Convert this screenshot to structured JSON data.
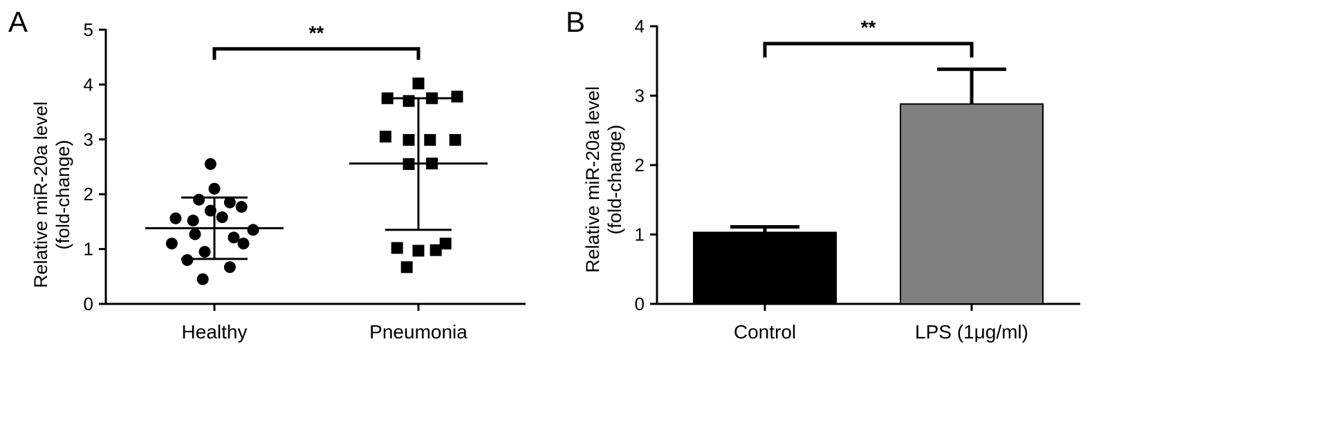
{
  "panels": {
    "A": {
      "label": "A"
    },
    "B": {
      "label": "B"
    }
  },
  "chart_data": [
    {
      "panel": "A",
      "type": "scatter",
      "ylabel_line1": "Relative miR-20a level",
      "ylabel_line2": "(fold-change)",
      "ylim": [
        0,
        5
      ],
      "yticks": [
        0,
        1,
        2,
        3,
        4,
        5
      ],
      "ytick_labels": [
        "0",
        "1",
        "2",
        "3",
        "4",
        "5"
      ],
      "grid": false,
      "legend": "none",
      "categories": [
        "Healthy",
        "Pneumonia"
      ],
      "groups": [
        {
          "category": "Healthy",
          "marker": "circle",
          "mean": 1.38,
          "sd_upper": 1.94,
          "sd_lower": 0.82,
          "points": [
            {
              "x_offset": -0.02,
              "y": 2.55
            },
            {
              "x_offset": 0.0,
              "y": 2.1
            },
            {
              "x_offset": -0.08,
              "y": 1.9
            },
            {
              "x_offset": 0.08,
              "y": 1.85
            },
            {
              "x_offset": 0.14,
              "y": 1.77
            },
            {
              "x_offset": -0.02,
              "y": 1.7
            },
            {
              "x_offset": -0.2,
              "y": 1.56
            },
            {
              "x_offset": -0.11,
              "y": 1.52
            },
            {
              "x_offset": 0.04,
              "y": 1.58
            },
            {
              "x_offset": 0.2,
              "y": 1.35
            },
            {
              "x_offset": -0.1,
              "y": 1.27
            },
            {
              "x_offset": 0.1,
              "y": 1.21
            },
            {
              "x_offset": -0.22,
              "y": 1.1
            },
            {
              "x_offset": 0.15,
              "y": 1.1
            },
            {
              "x_offset": -0.05,
              "y": 0.95
            },
            {
              "x_offset": -0.14,
              "y": 0.8
            },
            {
              "x_offset": 0.08,
              "y": 0.67
            },
            {
              "x_offset": -0.06,
              "y": 0.45
            }
          ]
        },
        {
          "category": "Pneumonia",
          "marker": "square",
          "mean": 2.56,
          "sd_upper": 3.75,
          "sd_lower": 1.35,
          "points": [
            {
              "x_offset": 0.0,
              "y": 4.02
            },
            {
              "x_offset": -0.16,
              "y": 3.75
            },
            {
              "x_offset": -0.05,
              "y": 3.7
            },
            {
              "x_offset": 0.07,
              "y": 3.75
            },
            {
              "x_offset": 0.2,
              "y": 3.78
            },
            {
              "x_offset": -0.17,
              "y": 3.05
            },
            {
              "x_offset": -0.05,
              "y": 2.99
            },
            {
              "x_offset": 0.06,
              "y": 2.99
            },
            {
              "x_offset": 0.19,
              "y": 2.99
            },
            {
              "x_offset": -0.05,
              "y": 2.55
            },
            {
              "x_offset": 0.07,
              "y": 2.56
            },
            {
              "x_offset": -0.11,
              "y": 1.02
            },
            {
              "x_offset": 0.0,
              "y": 0.97
            },
            {
              "x_offset": 0.09,
              "y": 0.98
            },
            {
              "x_offset": 0.14,
              "y": 1.1
            },
            {
              "x_offset": -0.06,
              "y": 0.67
            }
          ]
        }
      ],
      "annotations": [
        {
          "type": "significance-bracket",
          "from": "Healthy",
          "to": "Pneumonia",
          "y": 4.65,
          "drop": 0.2,
          "text": "**"
        }
      ]
    },
    {
      "panel": "B",
      "type": "bar",
      "ylabel_line1": "Relative miR-20a level",
      "ylabel_line2": "(fold-change)",
      "ylim": [
        0,
        4
      ],
      "yticks": [
        0,
        1,
        2,
        3,
        4
      ],
      "ytick_labels": [
        "0",
        "1",
        "2",
        "3",
        "4"
      ],
      "grid": false,
      "legend": "none",
      "categories": [
        "Control",
        "LPS (1μg/ml)"
      ],
      "values": [
        1.03,
        2.88
      ],
      "errors": [
        0.08,
        0.5
      ],
      "colors": [
        "#000000",
        "#808080"
      ],
      "annotations": [
        {
          "type": "significance-bracket",
          "from": "Control",
          "to": "LPS (1μg/ml)",
          "y": 3.75,
          "drop": 0.2,
          "text": "**"
        }
      ]
    }
  ]
}
